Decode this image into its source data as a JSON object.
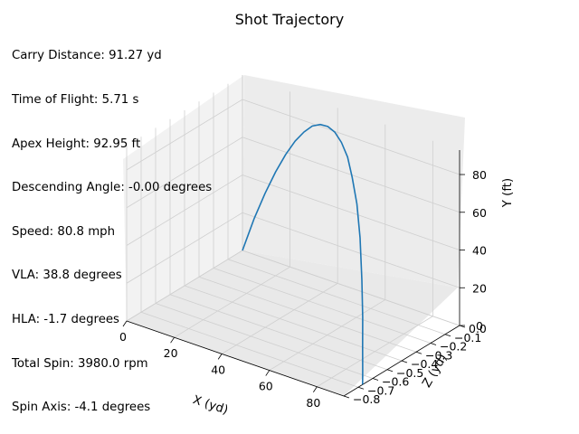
{
  "chart_data": {
    "type": "line",
    "title": "Shot Trajectory",
    "xlabel": "X (yd)",
    "ylabel": "Y (ft)",
    "zlabel": "Z (yd)",
    "x_ticks": [
      "0",
      "20",
      "40",
      "60",
      "80"
    ],
    "y_ticks": [
      "0",
      "20",
      "40",
      "60",
      "80"
    ],
    "z_ticks": [
      "0.0",
      "−0.1",
      "−0.2",
      "−0.3",
      "−0.4",
      "−0.5",
      "−0.6",
      "−0.7",
      "−0.8"
    ],
    "xlim": [
      0,
      91.27
    ],
    "ylim": [
      0,
      92.95
    ],
    "zlim": [
      -0.8,
      0.0
    ],
    "grid": true,
    "series_color": "#1f77b4",
    "series": [
      {
        "x": [
          0,
          5,
          10,
          15,
          20,
          25,
          30,
          35,
          40,
          45,
          50,
          55,
          60,
          65,
          70,
          75,
          80,
          84,
          87,
          89.5,
          91.27
        ],
        "y": [
          0,
          19,
          35,
          49,
          61,
          71,
          79,
          85.5,
          89.8,
          92.3,
          92.95,
          91.5,
          87.8,
          81.5,
          72,
          59,
          42,
          27,
          14.5,
          5.5,
          0
        ],
        "z": [
          0,
          -0.002,
          -0.008,
          -0.017,
          -0.03,
          -0.047,
          -0.068,
          -0.093,
          -0.12,
          -0.15,
          -0.183,
          -0.22,
          -0.26,
          -0.31,
          -0.36,
          -0.42,
          -0.49,
          -0.55,
          -0.6,
          -0.64,
          -0.67
        ]
      }
    ]
  },
  "stats": {
    "carry": "Carry Distance: 91.27 yd",
    "time": "Time of Flight: 5.71 s",
    "apex": "Apex Height: 92.95 ft",
    "descending": "Descending Angle: -0.00 degrees",
    "speed": "Speed: 80.8 mph",
    "vla": "VLA: 38.8 degrees",
    "hla": "HLA: -1.7 degrees",
    "spin": "Total Spin: 3980.0 rpm",
    "axis": "Spin Axis: -4.1 degrees"
  }
}
